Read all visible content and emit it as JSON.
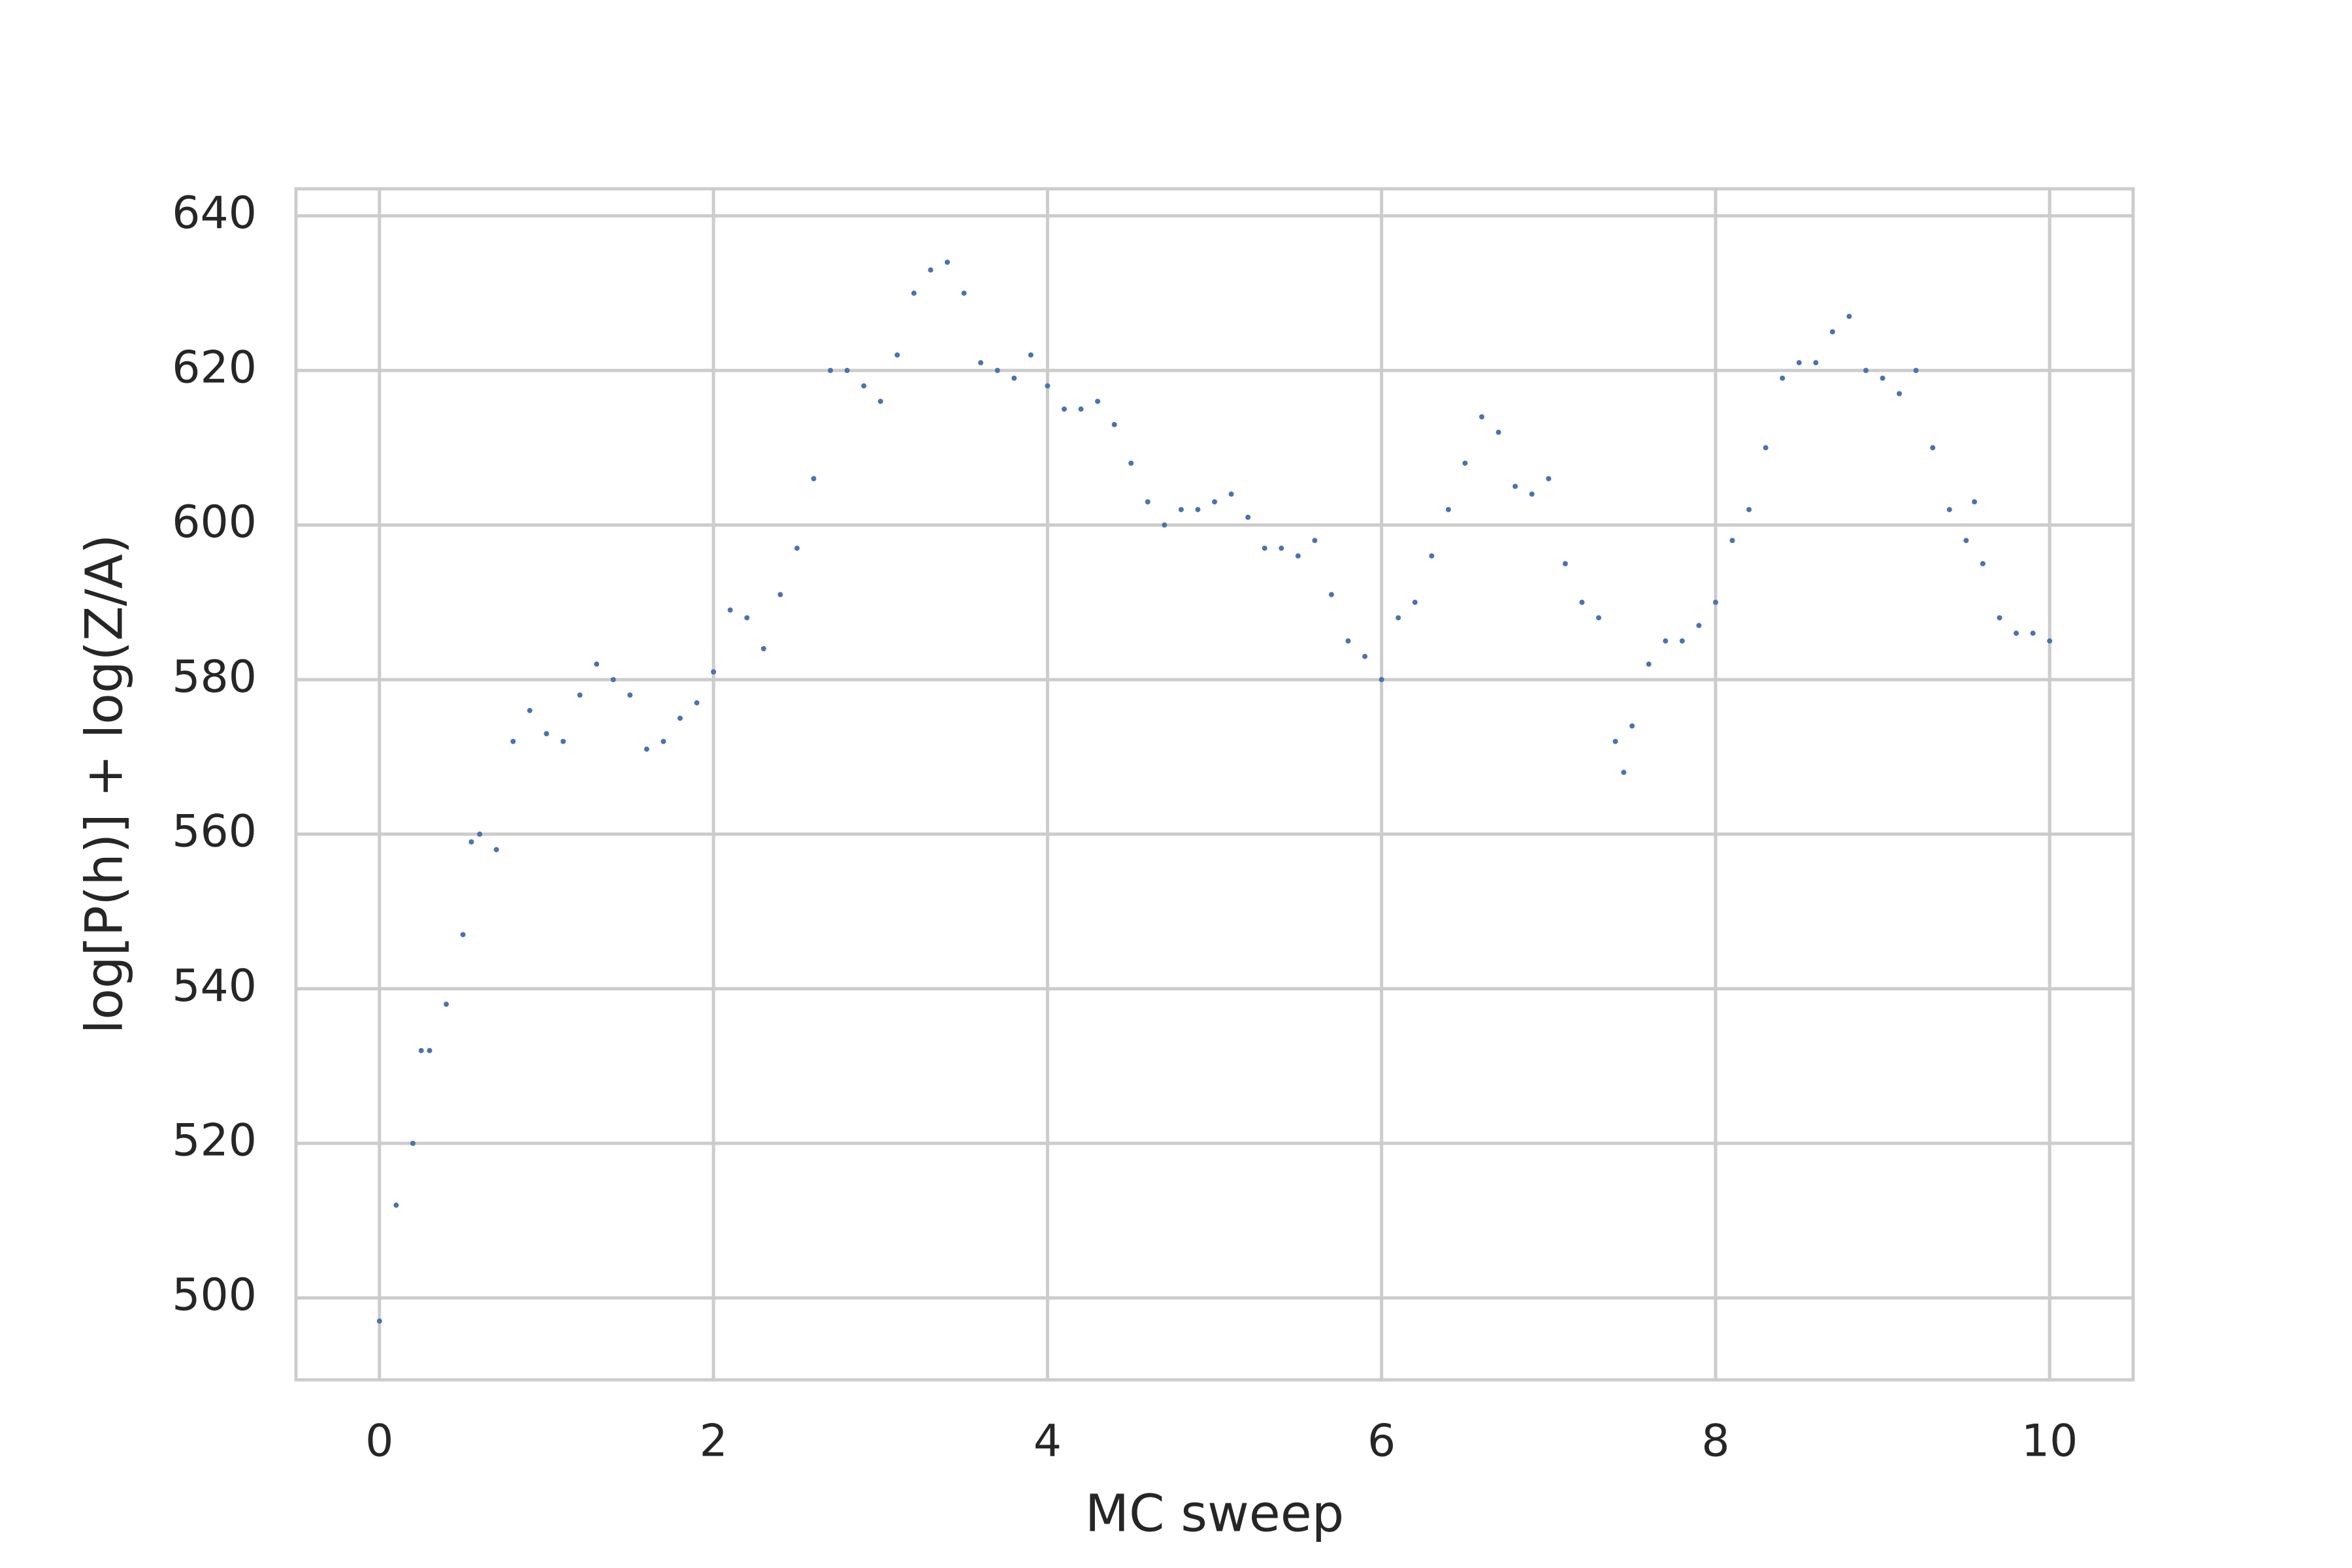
{
  "chart_data": {
    "type": "scatter",
    "x_label": "MC sweep",
    "y_label": "log[P(h)] + log(Z/A)",
    "color": "#4c72b0",
    "grid": true,
    "xlim": [
      -0.5,
      10.5
    ],
    "ylim": [
      489.4,
      643.5
    ],
    "xticks": [
      0,
      2,
      4,
      6,
      8,
      10
    ],
    "yticks": [
      500,
      520,
      540,
      560,
      580,
      600,
      620,
      640
    ],
    "x": [
      0.0,
      0.1,
      0.2,
      0.25,
      0.3,
      0.4,
      0.5,
      0.55,
      0.6,
      0.7,
      0.8,
      0.9,
      1.0,
      1.1,
      1.2,
      1.3,
      1.4,
      1.5,
      1.6,
      1.7,
      1.8,
      1.9,
      2.0,
      2.1,
      2.2,
      2.3,
      2.4,
      2.5,
      2.6,
      2.7,
      2.8,
      2.9,
      3.0,
      3.1,
      3.2,
      3.3,
      3.4,
      3.5,
      3.6,
      3.7,
      3.8,
      3.9,
      4.0,
      4.1,
      4.2,
      4.3,
      4.4,
      4.5,
      4.6,
      4.7,
      4.8,
      4.9,
      5.0,
      5.1,
      5.2,
      5.3,
      5.4,
      5.5,
      5.6,
      5.7,
      5.8,
      5.9,
      6.0,
      6.1,
      6.2,
      6.3,
      6.4,
      6.5,
      6.6,
      6.7,
      6.8,
      6.9,
      7.0,
      7.1,
      7.2,
      7.3,
      7.4,
      7.45,
      7.5,
      7.6,
      7.7,
      7.8,
      7.9,
      8.0,
      8.1,
      8.2,
      8.3,
      8.4,
      8.5,
      8.6,
      8.7,
      8.8,
      8.9,
      9.0,
      9.1,
      9.2,
      9.3,
      9.4,
      9.5,
      9.55,
      9.6,
      9.7,
      9.8,
      9.9,
      10.0
    ],
    "values": [
      497,
      512,
      520,
      532,
      532,
      538,
      547,
      559,
      560,
      558,
      572,
      576,
      573,
      572,
      578,
      582,
      580,
      578,
      571,
      572,
      575,
      577,
      581,
      589,
      588,
      584,
      591,
      597,
      606,
      620,
      620,
      618,
      616,
      622,
      630,
      633,
      634,
      630,
      621,
      620,
      619,
      622,
      618,
      615,
      615,
      616,
      613,
      608,
      603,
      600,
      602,
      602,
      603,
      604,
      601,
      597,
      597,
      596,
      598,
      591,
      585,
      583,
      580,
      588,
      590,
      596,
      602,
      608,
      614,
      612,
      605,
      604,
      606,
      595,
      590,
      588,
      572,
      568,
      574,
      582,
      585,
      585,
      587,
      590,
      598,
      602,
      610,
      619,
      621,
      621,
      625,
      627,
      620,
      619,
      617,
      620,
      610,
      602,
      598,
      603,
      595,
      588,
      586,
      586,
      585
    ]
  }
}
